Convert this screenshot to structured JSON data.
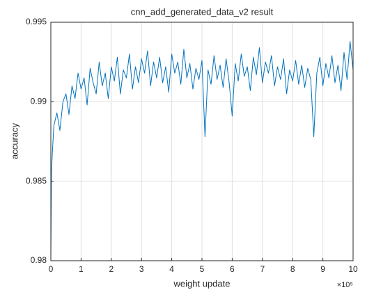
{
  "chart_data": {
    "type": "line",
    "title": "cnn_add_generated_data_v2 result",
    "xlabel": "weight update",
    "ylabel": "accuracy",
    "x_exponent_label": "×10⁵",
    "color": "#0072bd",
    "grid": true,
    "xlim": [
      0,
      1000000
    ],
    "xticks": [
      0,
      {
        "value": 100000,
        "label": "1"
      },
      {
        "value": 200000,
        "label": "2"
      },
      {
        "value": 300000,
        "label": "3"
      },
      {
        "value": 400000,
        "label": "4"
      },
      {
        "value": 500000,
        "label": "5"
      },
      {
        "value": 600000,
        "label": "6"
      },
      {
        "value": 700000,
        "label": "7"
      },
      {
        "value": 800000,
        "label": "8"
      },
      {
        "value": 900000,
        "label": "9"
      },
      {
        "value": 1000000,
        "label": "10"
      }
    ],
    "ylim": [
      0.98,
      0.995
    ],
    "yticks": [
      0.98,
      0.985,
      0.99,
      0.995
    ],
    "x": [
      0,
      2000,
      5000,
      10000,
      20000,
      30000,
      40000,
      50000,
      60000,
      70000,
      80000,
      90000,
      100000,
      110000,
      120000,
      130000,
      140000,
      150000,
      160000,
      170000,
      180000,
      190000,
      200000,
      210000,
      220000,
      230000,
      240000,
      250000,
      260000,
      270000,
      280000,
      290000,
      300000,
      310000,
      320000,
      330000,
      340000,
      350000,
      360000,
      370000,
      380000,
      390000,
      400000,
      410000,
      420000,
      430000,
      440000,
      450000,
      460000,
      470000,
      480000,
      490000,
      500000,
      510000,
      520000,
      530000,
      540000,
      550000,
      560000,
      570000,
      580000,
      590000,
      600000,
      610000,
      620000,
      630000,
      640000,
      650000,
      660000,
      670000,
      680000,
      690000,
      700000,
      710000,
      720000,
      730000,
      740000,
      750000,
      760000,
      770000,
      780000,
      790000,
      800000,
      810000,
      820000,
      830000,
      840000,
      850000,
      860000,
      870000,
      880000,
      890000,
      900000,
      910000,
      920000,
      930000,
      940000,
      950000,
      960000,
      970000,
      980000,
      990000,
      1000000
    ],
    "values": [
      0.98,
      0.9855,
      0.9868,
      0.9885,
      0.9893,
      0.9882,
      0.99,
      0.9905,
      0.9892,
      0.991,
      0.9902,
      0.9918,
      0.9908,
      0.9915,
      0.9898,
      0.9921,
      0.9912,
      0.9905,
      0.9925,
      0.991,
      0.9918,
      0.9902,
      0.9922,
      0.9913,
      0.9928,
      0.9905,
      0.992,
      0.9915,
      0.993,
      0.9908,
      0.9922,
      0.9912,
      0.9927,
      0.9918,
      0.9932,
      0.991,
      0.9925,
      0.9915,
      0.9928,
      0.9912,
      0.9922,
      0.9906,
      0.993,
      0.9918,
      0.9925,
      0.9911,
      0.9933,
      0.9915,
      0.9924,
      0.9908,
      0.9921,
      0.9914,
      0.9926,
      0.9878,
      0.992,
      0.9911,
      0.9929,
      0.9914,
      0.9923,
      0.9909,
      0.9927,
      0.9912,
      0.9891,
      0.9924,
      0.9913,
      0.993,
      0.9916,
      0.9922,
      0.9907,
      0.9928,
      0.9917,
      0.9934,
      0.9912,
      0.9925,
      0.9918,
      0.9929,
      0.991,
      0.9922,
      0.9914,
      0.9927,
      0.9905,
      0.992,
      0.9913,
      0.9926,
      0.9911,
      0.9923,
      0.9909,
      0.9921,
      0.9914,
      0.9878,
      0.9918,
      0.9928,
      0.991,
      0.9924,
      0.9915,
      0.9929,
      0.9912,
      0.9923,
      0.9907,
      0.9931,
      0.9914,
      0.9938,
      0.992
    ]
  }
}
